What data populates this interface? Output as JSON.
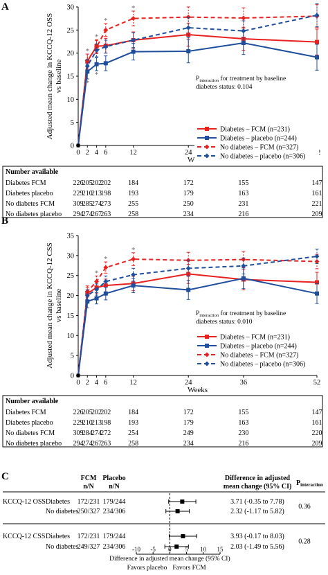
{
  "weeks": [
    0,
    2,
    4,
    6,
    12,
    24,
    36,
    52
  ],
  "xlabel": "Weeks",
  "legend": {
    "diab_fcm": "Diabetes – FCM (n=231)",
    "diab_pla": "Diabetes – placebo (n=244)",
    "nodiab_fcm": "No diabetes – FCM (n=327)",
    "nodiab_pla": "No diabetes – placebo (n=306)"
  },
  "colors": {
    "red": "#e8201e",
    "blue": "#1f4e9c"
  },
  "panelA": {
    "letter": "A",
    "ylabel": "Adjusted mean change in KCCQ-12 OSS vs baseline",
    "ylim": [
      0,
      30
    ],
    "yticks": [
      0,
      5,
      10,
      15,
      20,
      25,
      30
    ],
    "pint_prefix": "P",
    "pint_sub": "interaction",
    "pint_rest": " for treatment by baseline",
    "pint_line2": "diabetes status: 0.104",
    "stars": [
      2,
      4,
      6,
      12
    ],
    "series": {
      "diab_fcm": [
        0,
        18.2,
        21.5,
        21.6,
        22.8,
        24.0,
        23.1,
        22.4
      ],
      "diab_pla": [
        0,
        16.0,
        17.6,
        17.8,
        20.3,
        20.4,
        22.2,
        19.1
      ],
      "nodiab_fcm": [
        0,
        18.4,
        21.3,
        25.0,
        27.5,
        27.8,
        27.6,
        28.0
      ],
      "nodiab_pla": [
        0,
        17.2,
        20.6,
        21.4,
        22.8,
        25.5,
        24.8,
        28.2
      ]
    },
    "ci": {
      "diab_fcm": [
        null,
        1.6,
        1.4,
        1.6,
        1.8,
        2.5,
        2.5,
        2.8
      ],
      "diab_pla": [
        null,
        1.6,
        1.4,
        1.6,
        1.8,
        2.5,
        2.5,
        2.8
      ],
      "nodiab_fcm": [
        null,
        1.4,
        1.4,
        1.4,
        1.6,
        2.2,
        2.2,
        2.5
      ],
      "nodiab_pla": [
        null,
        1.4,
        1.4,
        1.4,
        1.6,
        2.2,
        2.2,
        2.5
      ]
    },
    "table": {
      "heading": "Number available",
      "rows": [
        {
          "label": "Diabetes FCM",
          "values": [
            "226",
            "205",
            "202",
            "202",
            "184",
            "172",
            "155",
            "147"
          ]
        },
        {
          "label": "Diabetes placebo",
          "values": [
            "229",
            "210",
            "213",
            "198",
            "193",
            "179",
            "163",
            "161"
          ]
        },
        {
          "label": "No diabetes FCM",
          "values": [
            "309",
            "285",
            "274",
            "273",
            "255",
            "250",
            "231",
            "221"
          ]
        },
        {
          "label": "No diabetes placebo",
          "values": [
            "294",
            "274",
            "267",
            "263",
            "258",
            "234",
            "216",
            "209"
          ]
        }
      ]
    }
  },
  "panelB": {
    "letter": "B",
    "ylabel": "Adjusted mean change in KCCQ-12 CSS vs baseline",
    "ylim": [
      0,
      35
    ],
    "yticks": [
      0,
      5,
      10,
      15,
      20,
      25,
      30,
      35
    ],
    "pint_prefix": "P",
    "pint_sub": "interaction",
    "pint_rest": " for treatment by baseline",
    "pint_line2": "diabetes status: 0.010",
    "stars": [
      4,
      6,
      12
    ],
    "series": {
      "diab_fcm": [
        0,
        20.5,
        22.0,
        22.5,
        23.0,
        25.4,
        24.0,
        23.3
      ],
      "diab_pla": [
        0,
        18.5,
        19.3,
        20.5,
        22.5,
        21.4,
        24.3,
        20.5
      ],
      "nodiab_fcm": [
        0,
        21.0,
        23.5,
        27.0,
        29.1,
        28.8,
        29.0,
        28.5
      ],
      "nodiab_pla": [
        0,
        20.0,
        21.5,
        23.5,
        25.2,
        26.8,
        27.4,
        29.8
      ]
    },
    "ci": {
      "diab_fcm": [
        null,
        1.6,
        1.4,
        1.6,
        1.8,
        2.4,
        2.6,
        2.5
      ],
      "diab_pla": [
        null,
        1.6,
        1.4,
        1.6,
        1.8,
        2.4,
        2.6,
        2.5
      ],
      "nodiab_fcm": [
        null,
        1.4,
        1.4,
        1.4,
        1.6,
        2.0,
        2.0,
        1.8
      ],
      "nodiab_pla": [
        null,
        1.4,
        1.4,
        1.4,
        1.6,
        2.0,
        2.0,
        1.8
      ]
    },
    "table": {
      "heading": "Number available",
      "rows": [
        {
          "label": "Diabetes FCM",
          "values": [
            "226",
            "205",
            "202",
            "202",
            "184",
            "172",
            "155",
            "147"
          ]
        },
        {
          "label": "Diabetes placebo",
          "values": [
            "229",
            "210",
            "213",
            "198",
            "193",
            "179",
            "163",
            "161"
          ]
        },
        {
          "label": "No diabetes FCM",
          "values": [
            "309",
            "284",
            "274",
            "272",
            "254",
            "249",
            "230",
            "220"
          ]
        },
        {
          "label": "No diabetes placebo",
          "values": [
            "294",
            "274",
            "267",
            "263",
            "258",
            "234",
            "216",
            "209"
          ]
        }
      ]
    }
  },
  "panelC": {
    "letter": "C",
    "headers": {
      "fcm_line1": "FCM",
      "fcm_line2": "n/N",
      "pla_line1": "Placebo",
      "pla_line2": "n/N",
      "diff_line1": "Difference in adjusted",
      "diff_line2": "mean change (95% CI)",
      "pint_main": "P",
      "pint_sub": "interaction"
    },
    "groups": [
      {
        "endpoint": "KCCQ-12 OSS",
        "pinteraction": "0.36",
        "rows": [
          {
            "subgroup": "Diabetes",
            "fcm": "172/231",
            "placebo": "179/244",
            "est": 3.71,
            "lo": -0.35,
            "hi": 7.78,
            "text": "3.71 (-0.35 to 7.78)"
          },
          {
            "subgroup": "No diabetes",
            "fcm": "250/327",
            "placebo": "234/306",
            "est": 2.32,
            "lo": -1.17,
            "hi": 5.82,
            "text": "2.32 (-1.17 to 5.82)"
          }
        ]
      },
      {
        "endpoint": "KCCQ-12 CSS",
        "pinteraction": "0.28",
        "rows": [
          {
            "subgroup": "Diabetes",
            "fcm": "172/231",
            "placebo": "179/244",
            "est": 3.93,
            "lo": -0.17,
            "hi": 8.03,
            "text": "3.93 (-0.17 to 8.03)"
          },
          {
            "subgroup": "No diabetes",
            "fcm": "249/327",
            "placebo": "234/306",
            "est": 2.03,
            "lo": -1.49,
            "hi": 5.56,
            "text": "2.03 (-1.49 to 5.56)"
          }
        ]
      }
    ],
    "xticks": [
      -10,
      -5,
      0,
      5,
      10,
      15
    ],
    "xlim": [
      -10,
      15
    ],
    "xlabel": "Difference in adjusted mean change (95% CI)",
    "favors_left": "Favors placebo",
    "favors_right": "Favors FCM"
  }
}
